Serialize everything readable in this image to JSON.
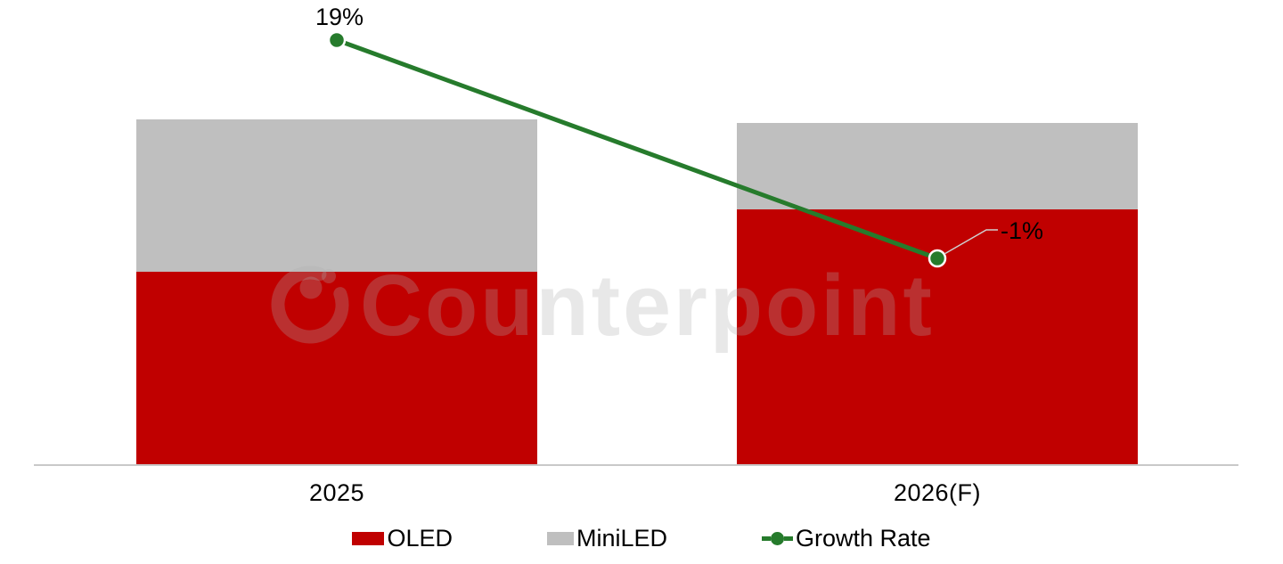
{
  "chart_data": {
    "type": "bar",
    "subtype": "stacked-bars-with-growth-line",
    "title": "",
    "categories": [
      "2025",
      "2026(F)"
    ],
    "series": [
      {
        "name": "OLED",
        "type": "bar",
        "color": "#C00000",
        "values": [
          56,
          74
        ]
      },
      {
        "name": "MiniLED",
        "type": "bar",
        "color": "#BFBFBF",
        "values": [
          44,
          25
        ]
      },
      {
        "name": "Growth Rate",
        "type": "line",
        "color": "#267B2C",
        "values": [
          19,
          -1
        ],
        "labels": [
          "19%",
          "-1%"
        ]
      }
    ],
    "stacked": true,
    "xlabel": "",
    "ylabel": "",
    "value_axis_visible": false,
    "gridlines": false,
    "legend_position": "bottom"
  },
  "legend": {
    "oled_label": "OLED",
    "miniled_label": "MiniLED",
    "growth_label": "Growth Rate"
  },
  "watermark": {
    "text": "Counterpoint"
  },
  "colors": {
    "oled": "#C00000",
    "miniled": "#BFBFBF",
    "growth_line": "#267B2C",
    "axis_line": "#C9C9C9",
    "leader_line": "#CFCFCF",
    "label_text": "#000000"
  }
}
